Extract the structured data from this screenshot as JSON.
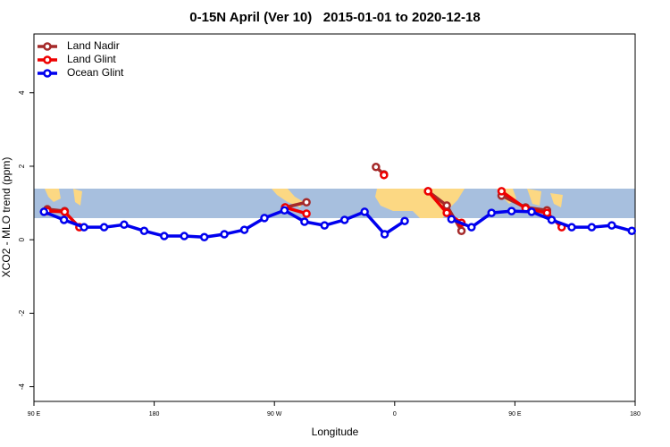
{
  "chart_data": {
    "type": "line",
    "title": "0-15N April (Ver 10)   2015-01-01 to 2020-12-18",
    "x_label": "Longitude",
    "y_label": "XCO2 - MLO trend (ppm)",
    "xlim": [
      90,
      540
    ],
    "xticks": [
      {
        "value": 90,
        "label": "90 E"
      },
      {
        "value": 180,
        "label": "180"
      },
      {
        "value": 270,
        "label": "90 W"
      },
      {
        "value": 360,
        "label": "0"
      },
      {
        "value": 450,
        "label": "90 E"
      },
      {
        "value": 540,
        "label": "180"
      }
    ],
    "ylim": [
      -4.4,
      5.6
    ],
    "yticks": [
      -4,
      -2,
      0,
      2,
      4
    ],
    "legend": "top-left",
    "series": [
      {
        "name": "Land Nadir",
        "color": "#a52a2a",
        "x": [
          100,
          113,
          null,
          278,
          294,
          null,
          346,
          352,
          null,
          385,
          399,
          410,
          null,
          440,
          458,
          474
        ],
        "values": [
          0.83,
          0.78,
          null,
          0.88,
          1.02,
          null,
          1.98,
          1.78,
          null,
          1.32,
          0.93,
          0.24,
          null,
          1.2,
          0.88,
          0.8
        ]
      },
      {
        "name": "Land Glint",
        "color": "#ee0000",
        "x": [
          100,
          113,
          124,
          null,
          278,
          294,
          null,
          352,
          null,
          385,
          399,
          410,
          null,
          440,
          458,
          474,
          485
        ],
        "values": [
          0.78,
          0.76,
          0.34,
          null,
          0.88,
          0.71,
          null,
          1.76,
          null,
          1.32,
          0.73,
          0.46,
          null,
          1.32,
          0.85,
          0.73,
          0.34
        ]
      },
      {
        "name": "Ocean Glint",
        "color": "#0000ee",
        "x": [
          97.5,
          112.5,
          127.5,
          142.5,
          157.5,
          172.5,
          187.5,
          202.5,
          217.5,
          232.5,
          247.5,
          262.5,
          277.5,
          292.5,
          307.5,
          322.5,
          337.5,
          352.5,
          367.5,
          null,
          402.5,
          417.5,
          432.5,
          447.5,
          462.5,
          477.5,
          492.5,
          507.5,
          522.5,
          537.5
        ],
        "values": [
          0.76,
          0.54,
          0.34,
          0.34,
          0.41,
          0.24,
          0.1,
          0.1,
          0.07,
          0.15,
          0.27,
          0.59,
          0.8,
          0.49,
          0.39,
          0.54,
          0.76,
          0.15,
          0.51,
          null,
          0.56,
          0.34,
          0.73,
          0.78,
          0.76,
          0.54,
          0.34,
          0.34,
          0.39,
          0.24
        ]
      }
    ]
  }
}
